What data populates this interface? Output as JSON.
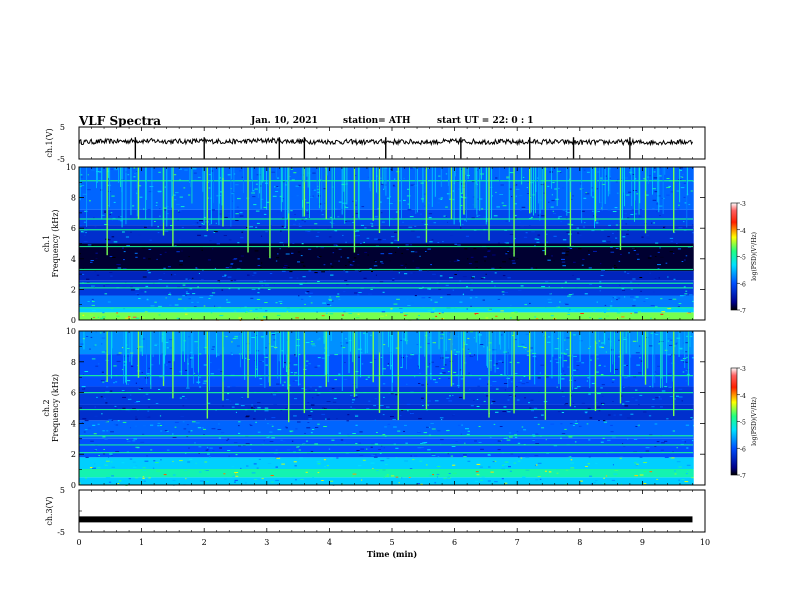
{
  "header": {
    "title": "VLF Spectra",
    "date": "Jan. 10, 2021",
    "station": "station= ATH",
    "start": "start  UT =   22: 0  : 1"
  },
  "chart_data": [
    {
      "type": "line",
      "panel": "ch1-waveform",
      "ylabel": "ch.1(V)",
      "ylim": [
        -5,
        5
      ],
      "yticks": [
        "5",
        "-5"
      ],
      "x": [
        0,
        0.5,
        1,
        1.5,
        2,
        2.5,
        3,
        3.5,
        4,
        4.5,
        5,
        5.5,
        6,
        6.5,
        7,
        7.5,
        8,
        8.5,
        9,
        9.5,
        9.8
      ],
      "values": [
        0.3,
        0.5,
        0.7,
        0.5,
        0.6,
        0.4,
        0.8,
        0.5,
        0.4,
        0.3,
        0.4,
        0.3,
        0.5,
        0.4,
        0.3,
        0.4,
        0.2,
        0.3,
        0.2,
        0.3,
        0.3
      ],
      "spikes_x": [
        0.9,
        2.0,
        3.2,
        3.6,
        4.9,
        6.1,
        7.2,
        7.9,
        8.8
      ],
      "xlim": [
        0,
        10
      ]
    },
    {
      "type": "heatmap",
      "panel": "ch1-spectrogram",
      "ylabel_lines": [
        "ch.1",
        "Frequency (kHz)"
      ],
      "ylim": [
        0,
        10
      ],
      "yticks": [
        "0",
        "2",
        "4",
        "6",
        "8",
        "10"
      ],
      "xlim": [
        0,
        10
      ],
      "colorbar": {
        "label": "log(PSD)(V²/Hz)",
        "ticks": [
          "-3",
          "-4",
          "-5",
          "-6",
          "-7"
        ],
        "range": [
          -7,
          -3
        ]
      },
      "bands": [
        {
          "f": [
            0,
            0.5
          ],
          "v": -4.6
        },
        {
          "f": [
            0.5,
            0.8
          ],
          "v": -5.4
        },
        {
          "f": [
            0.8,
            1.6
          ],
          "v": -5.8
        },
        {
          "f": [
            1.6,
            2.6
          ],
          "v": -6.2
        },
        {
          "f": [
            2.6,
            3.2
          ],
          "v": -6.4
        },
        {
          "f": [
            3.2,
            5.0
          ],
          "v": -6.9
        },
        {
          "f": [
            5.0,
            6.2
          ],
          "v": -6.3
        },
        {
          "f": [
            6.2,
            7.2
          ],
          "v": -6.1
        },
        {
          "f": [
            7.2,
            10
          ],
          "v": -5.9
        }
      ],
      "lines_khz": [
        0.8,
        2.1,
        2.4,
        3.3,
        4.8,
        5.9,
        6.6,
        9.1
      ],
      "sferics_x": [
        0.45,
        0.95,
        1.35,
        1.5,
        2.05,
        2.3,
        2.7,
        3.05,
        3.35,
        3.6,
        3.95,
        4.4,
        4.7,
        4.8,
        5.1,
        5.55,
        5.95,
        6.15,
        6.55,
        6.95,
        7.2,
        7.45,
        7.85,
        8.25,
        8.65,
        9.05,
        9.5
      ]
    },
    {
      "type": "heatmap",
      "panel": "ch2-spectrogram",
      "ylabel_lines": [
        "ch.2",
        "Frequency (kHz)"
      ],
      "ylim": [
        0,
        10
      ],
      "yticks": [
        "0",
        "2",
        "4",
        "6",
        "8",
        "10"
      ],
      "xlim": [
        0,
        10
      ],
      "colorbar": {
        "label": "log(PSD)(V²/Hz)",
        "ticks": [
          "-3",
          "-4",
          "-5",
          "-6",
          "-7"
        ],
        "range": [
          -7,
          -3
        ]
      },
      "bands": [
        {
          "f": [
            0,
            0.5
          ],
          "v": -5.4
        },
        {
          "f": [
            0.5,
            1.0
          ],
          "v": -5.0
        },
        {
          "f": [
            1.0,
            1.8
          ],
          "v": -5.4
        },
        {
          "f": [
            1.8,
            3.0
          ],
          "v": -6.0
        },
        {
          "f": [
            3.0,
            4.2
          ],
          "v": -5.9
        },
        {
          "f": [
            4.2,
            5.2
          ],
          "v": -6.3
        },
        {
          "f": [
            5.2,
            6.4
          ],
          "v": -6.2
        },
        {
          "f": [
            6.4,
            8.5
          ],
          "v": -6.0
        },
        {
          "f": [
            8.5,
            10
          ],
          "v": -5.7
        }
      ],
      "lines_khz": [
        1.0,
        2.1,
        2.6,
        3.2,
        4.9,
        6.0,
        7.1
      ],
      "sferics_x": [
        0.45,
        0.95,
        1.35,
        1.5,
        2.05,
        2.3,
        2.7,
        3.05,
        3.35,
        3.6,
        3.95,
        4.4,
        4.7,
        4.8,
        5.1,
        5.55,
        5.95,
        6.15,
        6.55,
        6.95,
        7.2,
        7.45,
        7.85,
        8.25,
        8.65,
        9.05,
        9.5
      ]
    },
    {
      "type": "line",
      "panel": "ch3-waveform",
      "ylabel": "ch.3(V)",
      "ylim": [
        -5,
        5
      ],
      "yticks": [
        "5",
        "-5"
      ],
      "x": [
        0,
        9.8
      ],
      "values": [
        -2.0,
        -2.0
      ],
      "xlim": [
        0,
        10
      ],
      "xlabel": "Time  (min)",
      "xticks": [
        "0",
        "1",
        "2",
        "3",
        "4",
        "5",
        "6",
        "7",
        "8",
        "9",
        "10"
      ]
    }
  ]
}
